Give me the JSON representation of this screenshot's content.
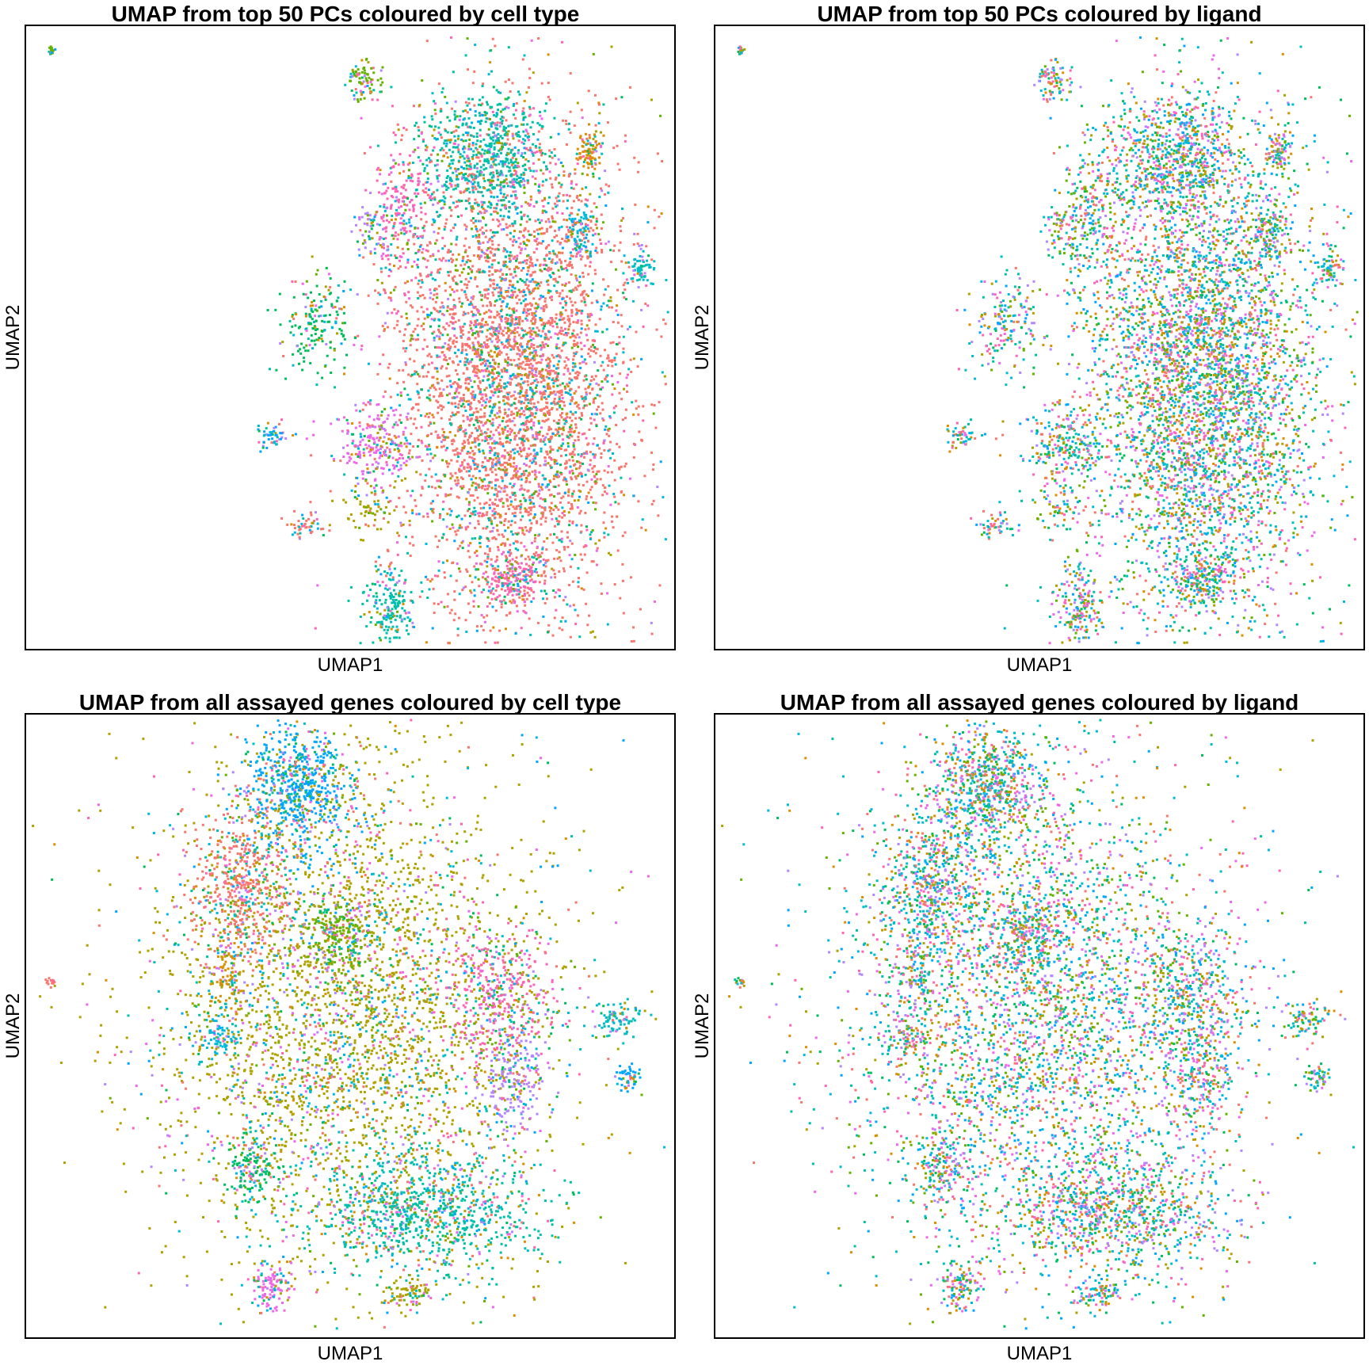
{
  "palette": [
    "#F8766D",
    "#DB8E00",
    "#AEA200",
    "#64B200",
    "#00BD5C",
    "#00C1A7",
    "#00BADE",
    "#00A6FF",
    "#B385FF",
    "#EF67EB",
    "#FF63B6",
    "#00BFC4"
  ],
  "chart_data": [
    {
      "type": "scatter",
      "title": "UMAP from top 50 PCs coloured by cell type",
      "xlabel": "UMAP1",
      "ylabel": "UMAP2",
      "xlim": [
        0,
        100
      ],
      "ylim": [
        0,
        100
      ],
      "ticks": "none",
      "grid": false,
      "legend": "none",
      "point_color_mode": "clustered",
      "clusters": [
        {
          "x": 75,
          "y": 43,
          "sx": 9,
          "sy": 20,
          "n": 4800
        },
        {
          "x": 71,
          "y": 79,
          "sx": 5,
          "sy": 5,
          "n": 700
        },
        {
          "x": 58,
          "y": 70,
          "sx": 2.5,
          "sy": 6,
          "n": 260
        },
        {
          "x": 52,
          "y": 91,
          "sx": 1.2,
          "sy": 1.5,
          "n": 80
        },
        {
          "x": 53,
          "y": 67,
          "sx": 1.5,
          "sy": 2.5,
          "n": 60
        },
        {
          "x": 87,
          "y": 80,
          "sx": 0.9,
          "sy": 1.6,
          "n": 90
        },
        {
          "x": 85.5,
          "y": 67,
          "sx": 1,
          "sy": 2.2,
          "n": 90
        },
        {
          "x": 95,
          "y": 61,
          "sx": 1.5,
          "sy": 1.5,
          "n": 70
        },
        {
          "x": 45,
          "y": 52,
          "sx": 3,
          "sy": 4,
          "n": 180
        },
        {
          "x": 54,
          "y": 33,
          "sx": 3,
          "sy": 3,
          "n": 220
        },
        {
          "x": 54,
          "y": 23,
          "sx": 3,
          "sy": 3,
          "n": 80
        },
        {
          "x": 38,
          "y": 34,
          "sx": 1.2,
          "sy": 1.2,
          "n": 50
        },
        {
          "x": 43,
          "y": 20,
          "sx": 1.5,
          "sy": 1.2,
          "n": 50
        },
        {
          "x": 56,
          "y": 7,
          "sx": 2,
          "sy": 3,
          "n": 180
        },
        {
          "x": 75,
          "y": 11,
          "sx": 2,
          "sy": 2,
          "n": 160
        },
        {
          "x": 4,
          "y": 96,
          "sx": 0.3,
          "sy": 0.4,
          "n": 18
        }
      ]
    },
    {
      "type": "scatter",
      "title": "UMAP from top 50 PCs coloured by ligand",
      "xlabel": "UMAP1",
      "ylabel": "UMAP2",
      "xlim": [
        0,
        100
      ],
      "ylim": [
        0,
        100
      ],
      "ticks": "none",
      "grid": false,
      "legend": "none",
      "point_color_mode": "mixed",
      "clusters": [
        {
          "x": 75,
          "y": 43,
          "sx": 9,
          "sy": 20,
          "n": 4800
        },
        {
          "x": 71,
          "y": 79,
          "sx": 5,
          "sy": 5,
          "n": 700
        },
        {
          "x": 58,
          "y": 70,
          "sx": 2.5,
          "sy": 6,
          "n": 260
        },
        {
          "x": 52,
          "y": 91,
          "sx": 1.2,
          "sy": 1.5,
          "n": 80
        },
        {
          "x": 53,
          "y": 67,
          "sx": 1.5,
          "sy": 2.5,
          "n": 60
        },
        {
          "x": 87,
          "y": 80,
          "sx": 0.9,
          "sy": 1.6,
          "n": 90
        },
        {
          "x": 85.5,
          "y": 67,
          "sx": 1,
          "sy": 2.2,
          "n": 90
        },
        {
          "x": 95,
          "y": 61,
          "sx": 1.5,
          "sy": 1.5,
          "n": 70
        },
        {
          "x": 45,
          "y": 52,
          "sx": 3,
          "sy": 4,
          "n": 180
        },
        {
          "x": 54,
          "y": 33,
          "sx": 3,
          "sy": 3,
          "n": 220
        },
        {
          "x": 54,
          "y": 23,
          "sx": 3,
          "sy": 3,
          "n": 80
        },
        {
          "x": 38,
          "y": 34,
          "sx": 1.2,
          "sy": 1.2,
          "n": 50
        },
        {
          "x": 43,
          "y": 20,
          "sx": 1.5,
          "sy": 1.2,
          "n": 50
        },
        {
          "x": 56,
          "y": 7,
          "sx": 2,
          "sy": 3,
          "n": 180
        },
        {
          "x": 75,
          "y": 11,
          "sx": 2,
          "sy": 2,
          "n": 160
        },
        {
          "x": 4,
          "y": 96,
          "sx": 0.3,
          "sy": 0.4,
          "n": 18
        }
      ]
    },
    {
      "type": "scatter",
      "title": "UMAP from all assayed genes coloured by cell type",
      "xlabel": "UMAP1",
      "ylabel": "UMAP2",
      "xlim": [
        0,
        100
      ],
      "ylim": [
        0,
        100
      ],
      "ticks": "none",
      "grid": false,
      "legend": "none",
      "point_color_mode": "clustered",
      "clusters": [
        {
          "x": 50,
          "y": 52,
          "sx": 15,
          "sy": 20,
          "n": 3800
        },
        {
          "x": 42,
          "y": 88,
          "sx": 4,
          "sy": 5,
          "n": 700
        },
        {
          "x": 33,
          "y": 72,
          "sx": 4,
          "sy": 6,
          "n": 500
        },
        {
          "x": 62,
          "y": 20,
          "sx": 9,
          "sy": 5,
          "n": 900
        },
        {
          "x": 73,
          "y": 55,
          "sx": 4,
          "sy": 6,
          "n": 400
        },
        {
          "x": 48,
          "y": 65,
          "sx": 2.5,
          "sy": 3,
          "n": 200
        },
        {
          "x": 75,
          "y": 42,
          "sx": 2.5,
          "sy": 4,
          "n": 220
        },
        {
          "x": 31,
          "y": 58,
          "sx": 1.5,
          "sy": 3,
          "n": 100
        },
        {
          "x": 30,
          "y": 48,
          "sx": 1.5,
          "sy": 2,
          "n": 70
        },
        {
          "x": 91,
          "y": 51,
          "sx": 2,
          "sy": 1.5,
          "n": 90
        },
        {
          "x": 35,
          "y": 27,
          "sx": 2,
          "sy": 3,
          "n": 150
        },
        {
          "x": 38,
          "y": 8,
          "sx": 1.5,
          "sy": 2,
          "n": 110
        },
        {
          "x": 59,
          "y": 7,
          "sx": 2,
          "sy": 1.5,
          "n": 80
        },
        {
          "x": 93,
          "y": 42,
          "sx": 1,
          "sy": 1.2,
          "n": 50
        },
        {
          "x": 4,
          "y": 57,
          "sx": 0.4,
          "sy": 0.4,
          "n": 16
        }
      ]
    },
    {
      "type": "scatter",
      "title": "UMAP from all assayed genes coloured by ligand",
      "xlabel": "UMAP1",
      "ylabel": "UMAP2",
      "xlim": [
        0,
        100
      ],
      "ylim": [
        0,
        100
      ],
      "ticks": "none",
      "grid": false,
      "legend": "none",
      "point_color_mode": "mixed",
      "clusters": [
        {
          "x": 50,
          "y": 52,
          "sx": 15,
          "sy": 20,
          "n": 3800
        },
        {
          "x": 42,
          "y": 88,
          "sx": 4,
          "sy": 5,
          "n": 700
        },
        {
          "x": 33,
          "y": 72,
          "sx": 4,
          "sy": 6,
          "n": 500
        },
        {
          "x": 62,
          "y": 20,
          "sx": 9,
          "sy": 5,
          "n": 900
        },
        {
          "x": 73,
          "y": 55,
          "sx": 4,
          "sy": 6,
          "n": 400
        },
        {
          "x": 48,
          "y": 65,
          "sx": 2.5,
          "sy": 3,
          "n": 200
        },
        {
          "x": 75,
          "y": 42,
          "sx": 2.5,
          "sy": 4,
          "n": 220
        },
        {
          "x": 31,
          "y": 58,
          "sx": 1.5,
          "sy": 3,
          "n": 100
        },
        {
          "x": 30,
          "y": 48,
          "sx": 1.5,
          "sy": 2,
          "n": 70
        },
        {
          "x": 91,
          "y": 51,
          "sx": 2,
          "sy": 1.5,
          "n": 90
        },
        {
          "x": 35,
          "y": 27,
          "sx": 2,
          "sy": 3,
          "n": 150
        },
        {
          "x": 38,
          "y": 8,
          "sx": 1.5,
          "sy": 2,
          "n": 110
        },
        {
          "x": 59,
          "y": 7,
          "sx": 2,
          "sy": 1.5,
          "n": 80
        },
        {
          "x": 93,
          "y": 42,
          "sx": 1,
          "sy": 1.2,
          "n": 50
        },
        {
          "x": 4,
          "y": 57,
          "sx": 0.4,
          "sy": 0.4,
          "n": 16
        }
      ]
    }
  ]
}
